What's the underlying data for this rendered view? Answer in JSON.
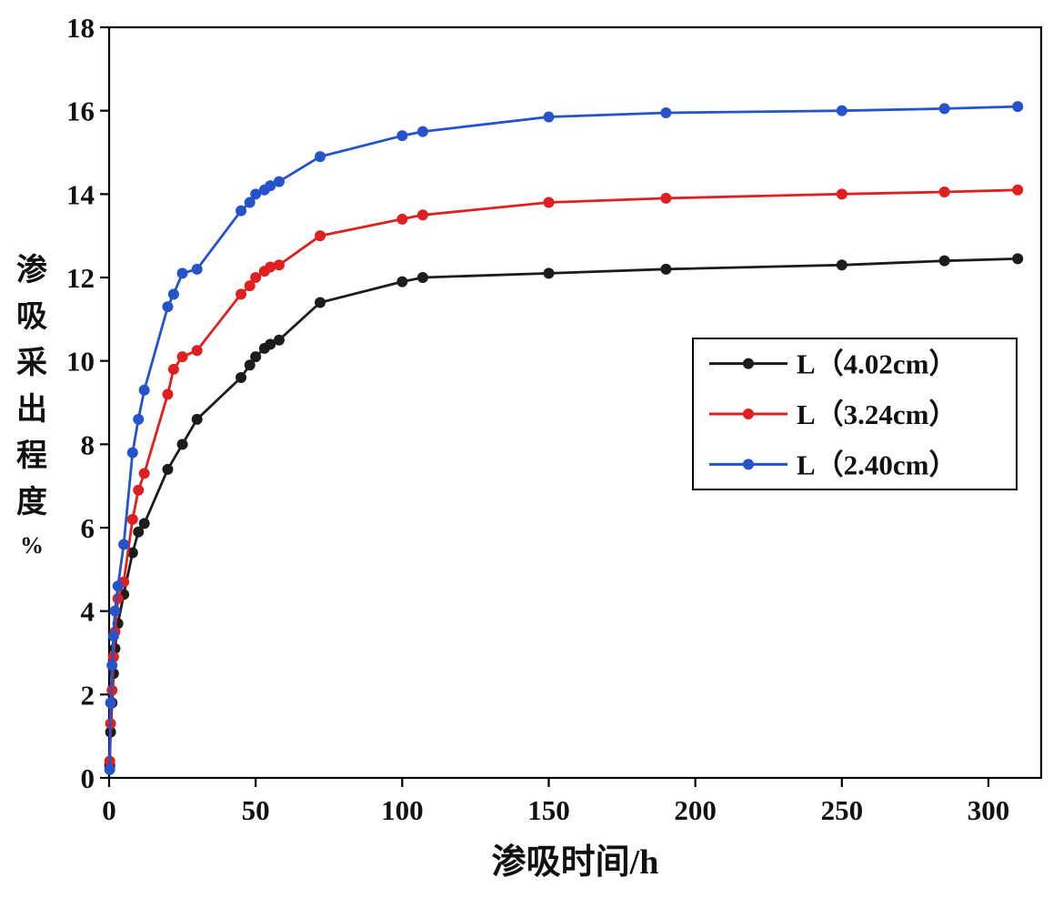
{
  "chart_data": {
    "type": "line",
    "title": "",
    "xlabel": "渗吸时间/h",
    "ylabel": "渗吸采出程度",
    "ylabel_unit": "%",
    "xlim": [
      0,
      318
    ],
    "ylim": [
      0,
      18
    ],
    "xticks": [
      0,
      50,
      100,
      150,
      200,
      250,
      300
    ],
    "yticks": [
      0,
      2,
      4,
      6,
      8,
      10,
      12,
      14,
      16,
      18
    ],
    "grid": false,
    "legend_position": "middle-right",
    "frame": true,
    "colors": {
      "black_series": "#1c1c1c",
      "red_series": "#e02020",
      "blue_series": "#2453cc"
    },
    "series": [
      {
        "name": "L（4.02cm）",
        "color": "#1c1c1c",
        "points": [
          [
            0.2,
            0.3
          ],
          [
            0.5,
            1.1
          ],
          [
            1,
            1.8
          ],
          [
            1.5,
            2.5
          ],
          [
            2,
            3.1
          ],
          [
            3,
            3.7
          ],
          [
            5,
            4.4
          ],
          [
            8,
            5.4
          ],
          [
            10,
            5.9
          ],
          [
            12,
            6.1
          ],
          [
            20,
            7.4
          ],
          [
            25,
            8.0
          ],
          [
            30,
            8.6
          ],
          [
            45,
            9.6
          ],
          [
            48,
            9.9
          ],
          [
            50,
            10.1
          ],
          [
            53,
            10.3
          ],
          [
            55,
            10.4
          ],
          [
            58,
            10.5
          ],
          [
            72,
            11.4
          ],
          [
            100,
            11.9
          ],
          [
            107,
            12.0
          ],
          [
            150,
            12.1
          ],
          [
            190,
            12.2
          ],
          [
            250,
            12.3
          ],
          [
            285,
            12.4
          ],
          [
            310,
            12.45
          ]
        ]
      },
      {
        "name": "L（3.24cm）",
        "color": "#e02020",
        "points": [
          [
            0.2,
            0.4
          ],
          [
            0.5,
            1.3
          ],
          [
            1,
            2.1
          ],
          [
            1.5,
            2.9
          ],
          [
            2,
            3.5
          ],
          [
            3,
            4.3
          ],
          [
            5,
            4.7
          ],
          [
            8,
            6.2
          ],
          [
            10,
            6.9
          ],
          [
            12,
            7.3
          ],
          [
            20,
            9.2
          ],
          [
            22,
            9.8
          ],
          [
            25,
            10.1
          ],
          [
            30,
            10.25
          ],
          [
            45,
            11.6
          ],
          [
            48,
            11.8
          ],
          [
            50,
            12.0
          ],
          [
            53,
            12.15
          ],
          [
            55,
            12.25
          ],
          [
            58,
            12.3
          ],
          [
            72,
            13.0
          ],
          [
            100,
            13.4
          ],
          [
            107,
            13.5
          ],
          [
            150,
            13.8
          ],
          [
            190,
            13.9
          ],
          [
            250,
            14.0
          ],
          [
            285,
            14.05
          ],
          [
            310,
            14.1
          ]
        ]
      },
      {
        "name": "L（2.40cm）",
        "color": "#2453cc",
        "points": [
          [
            0.2,
            0.2
          ],
          [
            0.5,
            1.8
          ],
          [
            1,
            2.7
          ],
          [
            1.5,
            3.4
          ],
          [
            2,
            4.0
          ],
          [
            3,
            4.6
          ],
          [
            5,
            5.6
          ],
          [
            8,
            7.8
          ],
          [
            10,
            8.6
          ],
          [
            12,
            9.3
          ],
          [
            20,
            11.3
          ],
          [
            22,
            11.6
          ],
          [
            25,
            12.1
          ],
          [
            30,
            12.2
          ],
          [
            45,
            13.6
          ],
          [
            48,
            13.8
          ],
          [
            50,
            14.0
          ],
          [
            53,
            14.1
          ],
          [
            55,
            14.2
          ],
          [
            58,
            14.3
          ],
          [
            72,
            14.9
          ],
          [
            100,
            15.4
          ],
          [
            107,
            15.5
          ],
          [
            150,
            15.85
          ],
          [
            190,
            15.95
          ],
          [
            250,
            16.0
          ],
          [
            285,
            16.05
          ],
          [
            310,
            16.1
          ]
        ]
      }
    ]
  }
}
